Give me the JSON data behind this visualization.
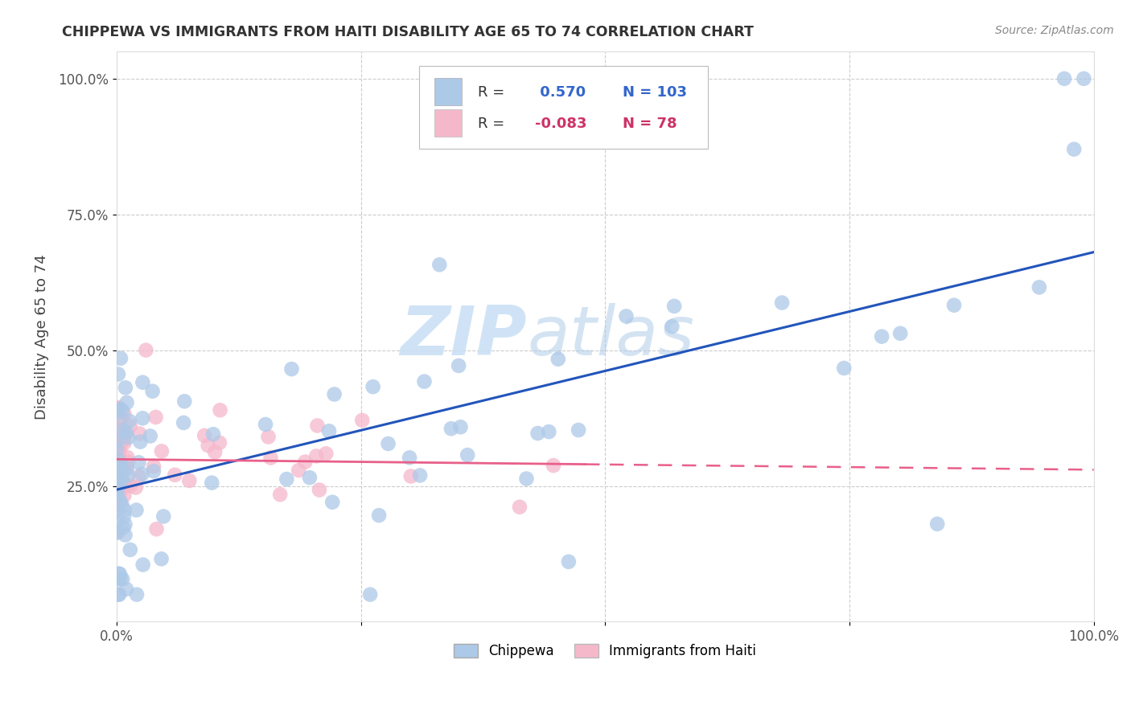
{
  "title": "CHIPPEWA VS IMMIGRANTS FROM HAITI DISABILITY AGE 65 TO 74 CORRELATION CHART",
  "source": "Source: ZipAtlas.com",
  "ylabel": "Disability Age 65 to 74",
  "legend_labels": [
    "Chippewa",
    "Immigrants from Haiti"
  ],
  "chippewa_R": 0.57,
  "chippewa_N": 103,
  "haiti_R": -0.083,
  "haiti_N": 78,
  "chippewa_color": "#adc9e8",
  "haiti_color": "#f5b8cb",
  "chippewa_line_color": "#2255bb",
  "haiti_line_color": "#e8608a",
  "background_color": "#ffffff",
  "grid_color": "#cccccc",
  "watermark_color": "#ddeeff",
  "title_color": "#333333",
  "tick_color": "#555555",
  "ylabel_color": "#444444",
  "source_color": "#888888"
}
